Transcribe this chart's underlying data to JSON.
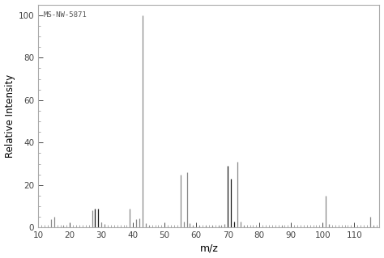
{
  "annotation": "MS-NW-5871",
  "xlabel": "m/z",
  "ylabel": "Relative Intensity",
  "xlim": [
    10,
    118
  ],
  "ylim": [
    0,
    105
  ],
  "xticks": [
    10,
    20,
    30,
    40,
    50,
    60,
    70,
    80,
    90,
    100,
    110
  ],
  "yticks": [
    0,
    20,
    40,
    60,
    80,
    100
  ],
  "background_color": "#ffffff",
  "spine_color": "#aaaaaa",
  "peaks": [
    {
      "mz": 14,
      "intensity": 4,
      "color": "#888888"
    },
    {
      "mz": 15,
      "intensity": 5,
      "color": "#888888"
    },
    {
      "mz": 18,
      "intensity": 1,
      "color": "#888888"
    },
    {
      "mz": 27,
      "intensity": 8,
      "color": "#888888"
    },
    {
      "mz": 28,
      "intensity": 9,
      "color": "#1a1a1a"
    },
    {
      "mz": 29,
      "intensity": 9,
      "color": "#1a1a1a"
    },
    {
      "mz": 30,
      "intensity": 2.5,
      "color": "#888888"
    },
    {
      "mz": 31,
      "intensity": 1.5,
      "color": "#888888"
    },
    {
      "mz": 39,
      "intensity": 9,
      "color": "#888888"
    },
    {
      "mz": 41,
      "intensity": 4,
      "color": "#888888"
    },
    {
      "mz": 42,
      "intensity": 4.5,
      "color": "#888888"
    },
    {
      "mz": 43,
      "intensity": 100,
      "color": "#888888"
    },
    {
      "mz": 44,
      "intensity": 2,
      "color": "#888888"
    },
    {
      "mz": 45,
      "intensity": 1,
      "color": "#888888"
    },
    {
      "mz": 55,
      "intensity": 25,
      "color": "#888888"
    },
    {
      "mz": 56,
      "intensity": 3,
      "color": "#888888"
    },
    {
      "mz": 57,
      "intensity": 26,
      "color": "#888888"
    },
    {
      "mz": 58,
      "intensity": 2,
      "color": "#888888"
    },
    {
      "mz": 59,
      "intensity": 1,
      "color": "#888888"
    },
    {
      "mz": 61,
      "intensity": 1,
      "color": "#888888"
    },
    {
      "mz": 63,
      "intensity": 1,
      "color": "#888888"
    },
    {
      "mz": 65,
      "intensity": 1,
      "color": "#888888"
    },
    {
      "mz": 67,
      "intensity": 1,
      "color": "#888888"
    },
    {
      "mz": 68,
      "intensity": 1,
      "color": "#888888"
    },
    {
      "mz": 69,
      "intensity": 1.5,
      "color": "#888888"
    },
    {
      "mz": 70,
      "intensity": 29,
      "color": "#1a1a1a"
    },
    {
      "mz": 71,
      "intensity": 23,
      "color": "#1a1a1a"
    },
    {
      "mz": 72,
      "intensity": 3,
      "color": "#1a1a1a"
    },
    {
      "mz": 73,
      "intensity": 31,
      "color": "#888888"
    },
    {
      "mz": 74,
      "intensity": 3,
      "color": "#888888"
    },
    {
      "mz": 75,
      "intensity": 1,
      "color": "#888888"
    },
    {
      "mz": 87,
      "intensity": 1,
      "color": "#888888"
    },
    {
      "mz": 101,
      "intensity": 15,
      "color": "#888888"
    },
    {
      "mz": 102,
      "intensity": 1.5,
      "color": "#888888"
    },
    {
      "mz": 115,
      "intensity": 5,
      "color": "#888888"
    },
    {
      "mz": 116,
      "intensity": 1,
      "color": "#888888"
    }
  ]
}
